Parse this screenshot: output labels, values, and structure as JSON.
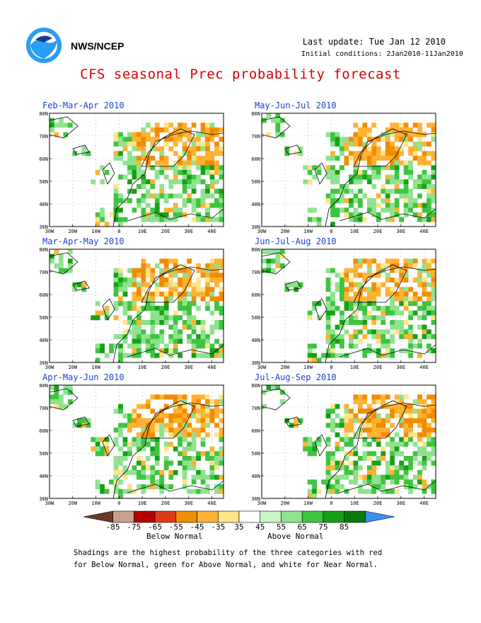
{
  "header": {
    "org": "NWS/NCEP",
    "last_update": "Last update: Tue Jan 12 2010",
    "initial_conditions": "Initial conditions: 2Jan2010-11Jan2010",
    "title": "CFS seasonal Prec probability forecast"
  },
  "axes": {
    "lat_labels": [
      "80N",
      "70N",
      "60N",
      "50N",
      "40N",
      "30N"
    ],
    "lon_labels": [
      "30W",
      "20W",
      "10W",
      "0",
      "10E",
      "20E",
      "30E",
      "40E"
    ]
  },
  "panels": [
    {
      "title": "Feb-Mar-Apr 2010"
    },
    {
      "title": "May-Jun-Jul 2010"
    },
    {
      "title": "Mar-Apr-May 2010"
    },
    {
      "title": "Jun-Jul-Aug 2010"
    },
    {
      "title": "Apr-May-Jun 2010"
    },
    {
      "title": "Jul-Aug-Sep 2010"
    }
  ],
  "colorbar": {
    "labels": [
      "-85",
      "-75",
      "-65",
      "-55",
      "-45",
      "-35",
      "35",
      "45",
      "55",
      "65",
      "75",
      "85"
    ],
    "colors": [
      "#6b3a2a",
      "#c8a08c",
      "#b30000",
      "#dd3b16",
      "#f28c00",
      "#ffb233",
      "#ffe48a",
      "#ffffff",
      "#c6f5c6",
      "#8fe38f",
      "#3fc43f",
      "#16a016",
      "#0a7a0a",
      "#3b8ff0"
    ],
    "below_label": "Below Normal",
    "above_label": "Above Normal"
  },
  "footnote": {
    "line1": "Shadings are the highest probability of the three categories with red",
    "line2": "for Below Normal, green for Above Normal, and white for Near Normal."
  }
}
